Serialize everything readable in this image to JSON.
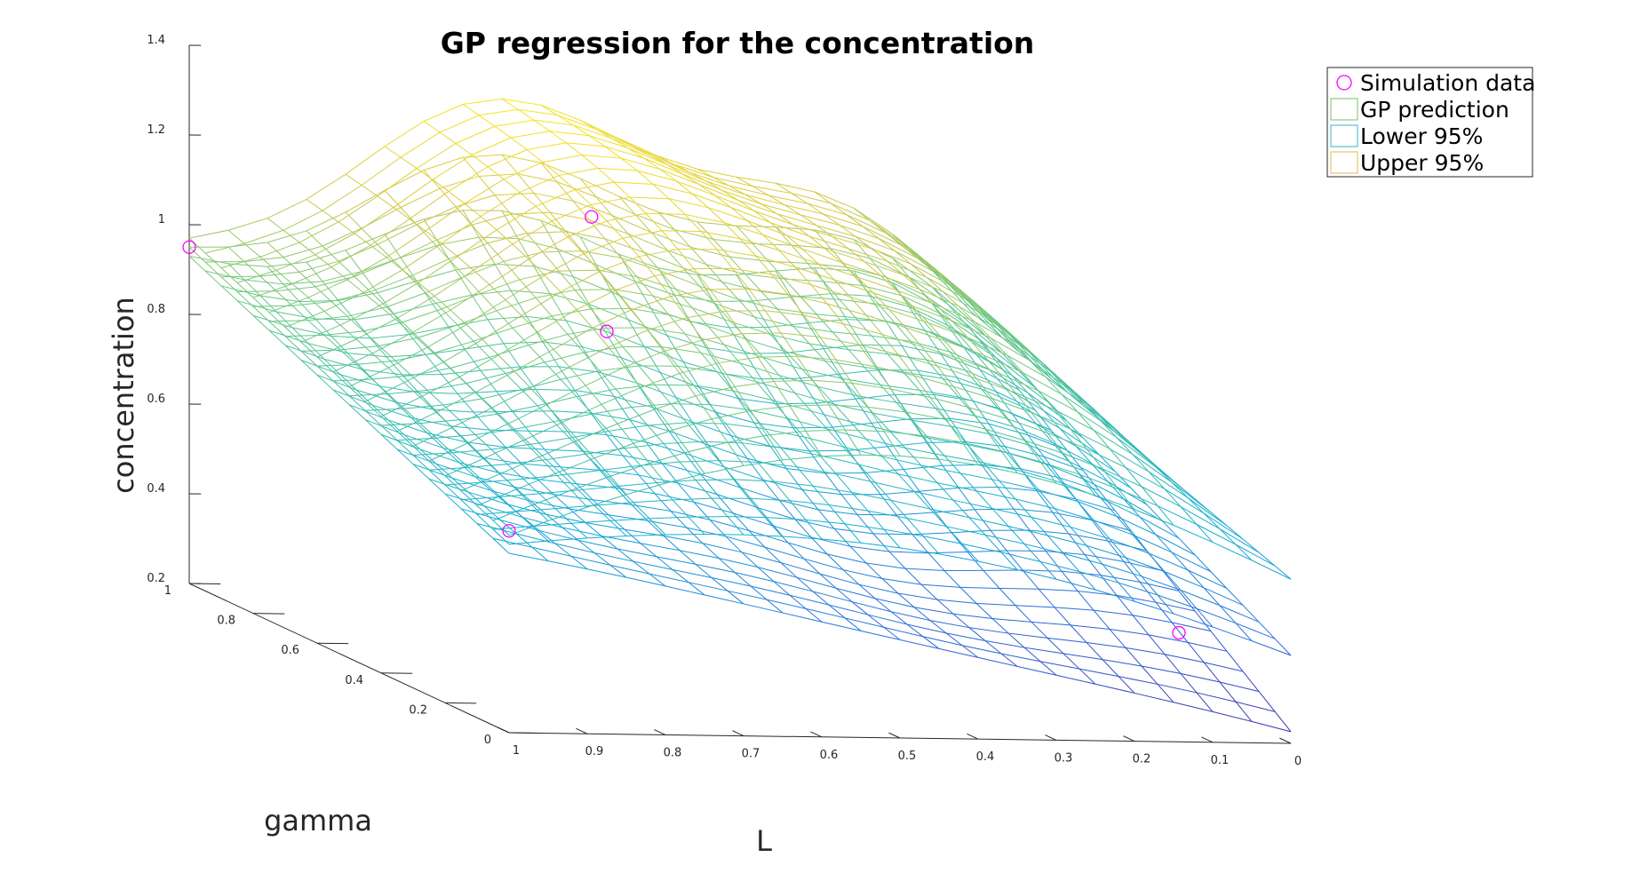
{
  "chart_data": {
    "type": "surface3d",
    "title": "GP regression for the concentration",
    "xlabel": "L",
    "ylabel": "gamma",
    "zlabel": "concentration",
    "xlim": [
      0,
      1
    ],
    "ylim": [
      0,
      1
    ],
    "zlim": [
      0.2,
      1.4
    ],
    "x_ticks": [
      "1",
      "0.9",
      "0.8",
      "0.7",
      "0.6",
      "0.5",
      "0.4",
      "0.3",
      "0.2",
      "0.1",
      "0"
    ],
    "y_ticks": [
      "0",
      "0.2",
      "0.4",
      "0.6",
      "0.8",
      "1"
    ],
    "z_ticks": [
      "0.2",
      "0.4",
      "0.6",
      "0.8",
      "1",
      "1.2",
      "1.4"
    ],
    "series": [
      {
        "name": "Simulation data",
        "kind": "scatter",
        "color": "#ff00ff",
        "points": [
          {
            "L": 1.0,
            "gamma": 1.0,
            "concentration": 0.95
          },
          {
            "L": 1.0,
            "gamma": 0.0,
            "concentration": 0.65
          },
          {
            "L": 0.6,
            "gamma": 0.72,
            "concentration": 1.12
          },
          {
            "L": 0.65,
            "gamma": 0.55,
            "concentration": 0.92
          },
          {
            "L": 0.0,
            "gamma": 0.35,
            "concentration": 0.33
          }
        ]
      },
      {
        "name": "GP prediction",
        "kind": "mesh",
        "color": "#7bbf6a"
      },
      {
        "name": "Lower 95%",
        "kind": "mesh",
        "color": "#35b5c8"
      },
      {
        "name": "Upper 95%",
        "kind": "mesh",
        "color": "#e6b84a"
      }
    ],
    "legend_position": "top-right"
  },
  "legend": {
    "items": [
      {
        "label": "Simulation data"
      },
      {
        "label": "GP prediction"
      },
      {
        "label": "Lower 95%"
      },
      {
        "label": "Upper 95%"
      }
    ]
  }
}
